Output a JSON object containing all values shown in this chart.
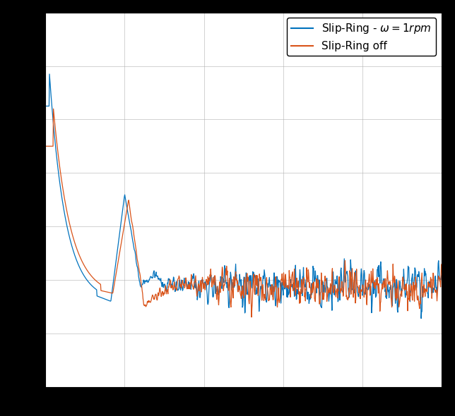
{
  "title": "",
  "xlabel": "",
  "ylabel": "",
  "line1_label": "Slip-Ring - $\\omega = 1rpm$",
  "line2_label": "Slip-Ring off",
  "line1_color": "#0072BD",
  "line2_color": "#D95319",
  "plot_bg_color": "#ffffff",
  "fig_bg_color": "#000000",
  "grid_color": "#b0b0b0",
  "xlim": [
    0,
    1000
  ],
  "ylim": [
    -0.02,
    0.12
  ],
  "figsize": [
    6.44,
    5.9
  ],
  "dpi": 100
}
